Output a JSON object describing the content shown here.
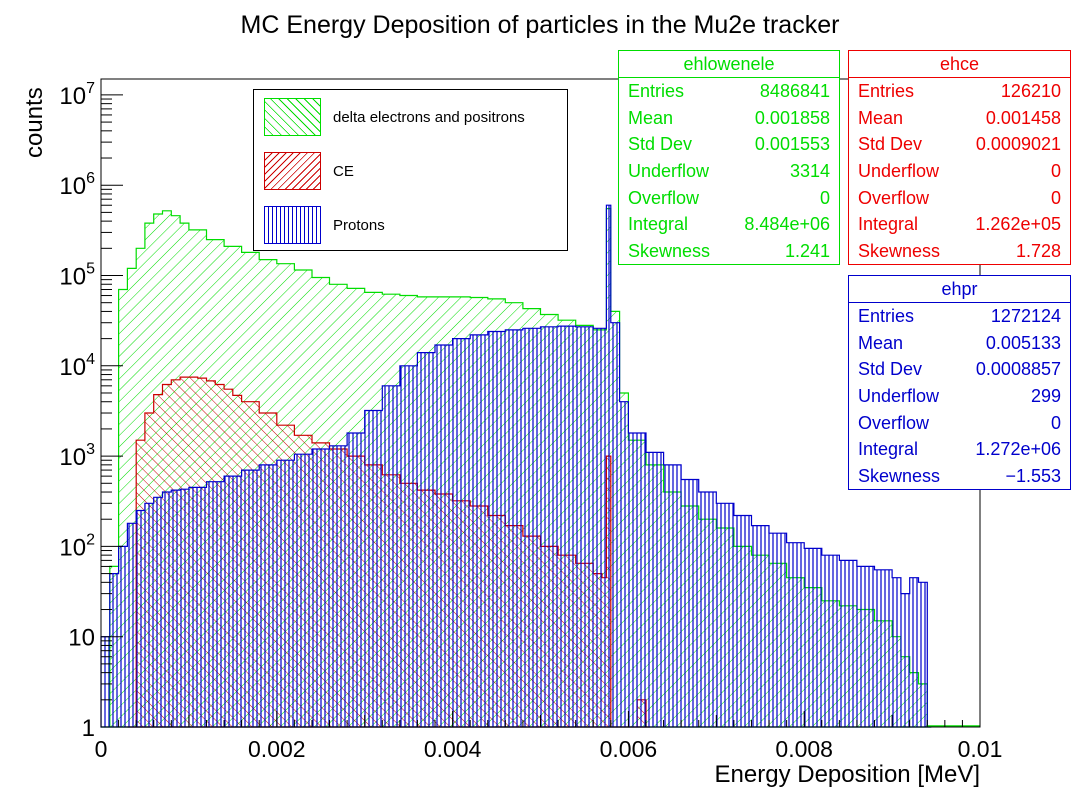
{
  "chart_data": {
    "type": "histogram",
    "title": "MC Energy Deposition of particles in the Mu2e tracker",
    "xlabel": "Energy Deposition [MeV]",
    "ylabel": "counts",
    "xlim": [
      0,
      0.01
    ],
    "ylim": [
      1,
      15000000
    ],
    "yscale": "log",
    "x_ticks": [
      "0",
      "0.002",
      "0.004",
      "0.006",
      "0.008",
      "0.01"
    ],
    "y_ticks": [
      "1",
      "10",
      "10^2",
      "10^3",
      "10^4",
      "10^5",
      "10^6",
      "10^7"
    ],
    "legend_position": "top-center",
    "legend": [
      {
        "label": "delta electrons and positrons",
        "color": "#00dd00",
        "pattern": "hatch-diagonal"
      },
      {
        "label": "CE",
        "color": "#cc0000",
        "pattern": "hatch-diagonal"
      },
      {
        "label": "Protons",
        "color": "#0000cc",
        "pattern": "hatch-vertical"
      }
    ],
    "series": [
      {
        "name": "ehlowenele",
        "color": "#00dd00",
        "points": [
          [
            0,
            1
          ],
          [
            0.0001,
            60
          ],
          [
            0.0002,
            70000
          ],
          [
            0.0003,
            120000
          ],
          [
            0.0004,
            200000
          ],
          [
            0.0005,
            380000
          ],
          [
            0.0006,
            480000
          ],
          [
            0.0007,
            520000
          ],
          [
            0.0008,
            460000
          ],
          [
            0.0009,
            380000
          ],
          [
            0.001,
            320000
          ],
          [
            0.0012,
            250000
          ],
          [
            0.0014,
            210000
          ],
          [
            0.0016,
            180000
          ],
          [
            0.0018,
            150000
          ],
          [
            0.002,
            135000
          ],
          [
            0.0022,
            115000
          ],
          [
            0.0024,
            95000
          ],
          [
            0.0026,
            80000
          ],
          [
            0.0028,
            72000
          ],
          [
            0.003,
            65000
          ],
          [
            0.0032,
            62000
          ],
          [
            0.0034,
            60000
          ],
          [
            0.0036,
            58000
          ],
          [
            0.0038,
            58000
          ],
          [
            0.004,
            58000
          ],
          [
            0.0042,
            57000
          ],
          [
            0.0044,
            55000
          ],
          [
            0.0046,
            50000
          ],
          [
            0.0048,
            43000
          ],
          [
            0.005,
            37000
          ],
          [
            0.0052,
            32000
          ],
          [
            0.0054,
            28000
          ],
          [
            0.0056,
            25000
          ],
          [
            0.0057,
            25000
          ],
          [
            0.00575,
            550000
          ],
          [
            0.0058,
            40000
          ],
          [
            0.0059,
            5000
          ],
          [
            0.006,
            1500
          ],
          [
            0.0062,
            800
          ],
          [
            0.0064,
            400
          ],
          [
            0.0066,
            280
          ],
          [
            0.0068,
            200
          ],
          [
            0.007,
            160
          ],
          [
            0.0072,
            100
          ],
          [
            0.0074,
            80
          ],
          [
            0.0076,
            65
          ],
          [
            0.0078,
            45
          ],
          [
            0.008,
            35
          ],
          [
            0.0082,
            25
          ],
          [
            0.0084,
            22
          ],
          [
            0.0086,
            20
          ],
          [
            0.0088,
            15
          ],
          [
            0.009,
            10
          ],
          [
            0.0091,
            6
          ],
          [
            0.0092,
            4
          ],
          [
            0.0093,
            3
          ],
          [
            0.0094,
            1
          ]
        ]
      },
      {
        "name": "ehce",
        "color": "#cc0000",
        "points": [
          [
            0.0003,
            1
          ],
          [
            0.0004,
            1500
          ],
          [
            0.0005,
            3000
          ],
          [
            0.0006,
            4800
          ],
          [
            0.0007,
            6200
          ],
          [
            0.0008,
            7000
          ],
          [
            0.0009,
            7500
          ],
          [
            0.001,
            7500
          ],
          [
            0.0011,
            7300
          ],
          [
            0.0012,
            6800
          ],
          [
            0.0013,
            6200
          ],
          [
            0.0014,
            5500
          ],
          [
            0.0015,
            4700
          ],
          [
            0.0016,
            4000
          ],
          [
            0.0018,
            3000
          ],
          [
            0.002,
            2200
          ],
          [
            0.0022,
            1700
          ],
          [
            0.0024,
            1400
          ],
          [
            0.0026,
            1200
          ],
          [
            0.0028,
            1000
          ],
          [
            0.003,
            800
          ],
          [
            0.0032,
            620
          ],
          [
            0.0034,
            500
          ],
          [
            0.0036,
            420
          ],
          [
            0.0038,
            380
          ],
          [
            0.004,
            320
          ],
          [
            0.0042,
            280
          ],
          [
            0.0044,
            220
          ],
          [
            0.0046,
            170
          ],
          [
            0.0048,
            130
          ],
          [
            0.005,
            100
          ],
          [
            0.0052,
            80
          ],
          [
            0.0054,
            65
          ],
          [
            0.0056,
            50
          ],
          [
            0.0057,
            45
          ],
          [
            0.00575,
            1000
          ],
          [
            0.0058,
            1
          ],
          [
            0.006,
            1
          ],
          [
            0.0061,
            2
          ],
          [
            0.0062,
            1
          ]
        ]
      },
      {
        "name": "ehpr",
        "color": "#0000cc",
        "points": [
          [
            0,
            10
          ],
          [
            0.0001,
            50
          ],
          [
            0.0002,
            100
          ],
          [
            0.0003,
            180
          ],
          [
            0.0004,
            250
          ],
          [
            0.0005,
            300
          ],
          [
            0.0006,
            350
          ],
          [
            0.0007,
            400
          ],
          [
            0.0008,
            420
          ],
          [
            0.0009,
            430
          ],
          [
            0.001,
            450
          ],
          [
            0.0012,
            520
          ],
          [
            0.0014,
            600
          ],
          [
            0.0016,
            700
          ],
          [
            0.0018,
            800
          ],
          [
            0.002,
            900
          ],
          [
            0.0022,
            1050
          ],
          [
            0.0024,
            1200
          ],
          [
            0.0026,
            1300
          ],
          [
            0.0028,
            1800
          ],
          [
            0.003,
            3200
          ],
          [
            0.0032,
            6000
          ],
          [
            0.0034,
            10000
          ],
          [
            0.0036,
            14000
          ],
          [
            0.0038,
            17000
          ],
          [
            0.004,
            20000
          ],
          [
            0.0042,
            22000
          ],
          [
            0.0044,
            24000
          ],
          [
            0.0046,
            25000
          ],
          [
            0.0048,
            26000
          ],
          [
            0.005,
            27000
          ],
          [
            0.0052,
            27500
          ],
          [
            0.0054,
            27000
          ],
          [
            0.0056,
            26000
          ],
          [
            0.0057,
            26000
          ],
          [
            0.00575,
            600000
          ],
          [
            0.0058,
            30000
          ],
          [
            0.0059,
            4000
          ],
          [
            0.006,
            1800
          ],
          [
            0.0062,
            1100
          ],
          [
            0.0064,
            800
          ],
          [
            0.0066,
            550
          ],
          [
            0.0068,
            400
          ],
          [
            0.007,
            300
          ],
          [
            0.0072,
            220
          ],
          [
            0.0074,
            170
          ],
          [
            0.0076,
            140
          ],
          [
            0.0078,
            110
          ],
          [
            0.008,
            95
          ],
          [
            0.0082,
            80
          ],
          [
            0.0084,
            70
          ],
          [
            0.0086,
            60
          ],
          [
            0.0088,
            55
          ],
          [
            0.009,
            45
          ],
          [
            0.0091,
            30
          ],
          [
            0.0092,
            45
          ],
          [
            0.0093,
            40
          ],
          [
            0.0094,
            1
          ]
        ]
      }
    ]
  },
  "stats": [
    {
      "id": "ehlowenele",
      "title": "ehlowenele",
      "color": "#00dd00",
      "rows": [
        {
          "label": "Entries",
          "value": "8486841"
        },
        {
          "label": "Mean",
          "value": "0.001858"
        },
        {
          "label": "Std Dev",
          "value": "0.001553"
        },
        {
          "label": "Underflow",
          "value": "3314"
        },
        {
          "label": "Overflow",
          "value": "0"
        },
        {
          "label": "Integral",
          "value": "8.484e+06"
        },
        {
          "label": "Skewness",
          "value": "1.241"
        }
      ]
    },
    {
      "id": "ehce",
      "title": "ehce",
      "color": "#ee0000",
      "rows": [
        {
          "label": "Entries",
          "value": "126210"
        },
        {
          "label": "Mean",
          "value": "0.001458"
        },
        {
          "label": "Std Dev",
          "value": "0.0009021"
        },
        {
          "label": "Underflow",
          "value": "0"
        },
        {
          "label": "Overflow",
          "value": "0"
        },
        {
          "label": "Integral",
          "value": "1.262e+05"
        },
        {
          "label": "Skewness",
          "value": "1.728"
        }
      ]
    },
    {
      "id": "ehpr",
      "title": "ehpr",
      "color": "#0000cc",
      "rows": [
        {
          "label": "Entries",
          "value": "1272124"
        },
        {
          "label": "Mean",
          "value": "0.005133"
        },
        {
          "label": "Std Dev",
          "value": "0.0008857"
        },
        {
          "label": "Underflow",
          "value": "299"
        },
        {
          "label": "Overflow",
          "value": "0"
        },
        {
          "label": "Integral",
          "value": "1.272e+06"
        },
        {
          "label": "Skewness",
          "value": "−1.553"
        }
      ]
    }
  ]
}
